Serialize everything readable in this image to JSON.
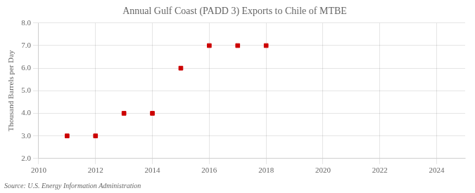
{
  "chart_data": {
    "type": "scatter",
    "title": "Annual Gulf Coast (PADD 3) Exports to Chile of MTBE",
    "ylabel": "Thousand Barrels per Day",
    "source": "Source: U.S. Energy Information Administration",
    "x": [
      2011,
      2012,
      2013,
      2014,
      2015,
      2016,
      2017,
      2018
    ],
    "values": [
      3.0,
      3.0,
      4.0,
      4.0,
      6.0,
      7.0,
      7.0,
      7.0
    ],
    "color": "#cc0000",
    "marker": "square",
    "xlim": [
      2010,
      2025
    ],
    "ylim": [
      2.0,
      8.0
    ],
    "xticks": [
      2010,
      2012,
      2014,
      2016,
      2018,
      2020,
      2022,
      2024
    ],
    "yticks": [
      {
        "value": 2.0,
        "label": "2.0"
      },
      {
        "value": 3.0,
        "label": "3.0"
      },
      {
        "value": 4.0,
        "label": "4.0"
      },
      {
        "value": 5.0,
        "label": "5.0"
      },
      {
        "value": 6.0,
        "label": "6.0"
      },
      {
        "value": 7.0,
        "label": "7.0"
      },
      {
        "value": 8.0,
        "label": "8.0"
      }
    ],
    "grid": true
  }
}
